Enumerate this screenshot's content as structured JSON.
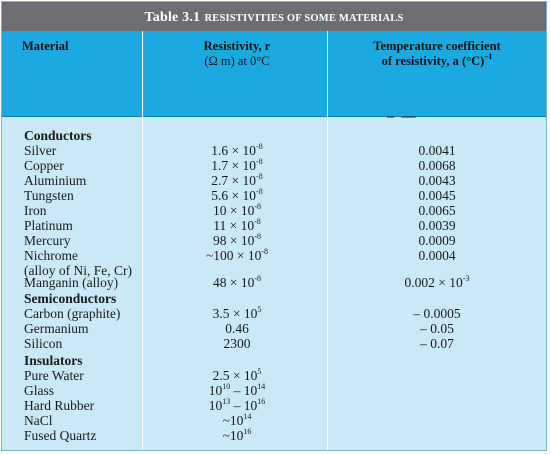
{
  "table_title": {
    "number": "Table 3.1",
    "rest": "Resistivities of some materials"
  },
  "headers": {
    "material": "Material",
    "resistivity_line1": "Resistivity, r",
    "resistivity_line2": "(Ω m) at 0°C",
    "coef_line1": "Temperature coefficient",
    "coef_line2": "of resistivity, a (°C)",
    "coef_unit_sup": "–1",
    "dash": "– —"
  },
  "categories": {
    "conductors": "Conductors",
    "semiconductors": "Semiconductors",
    "insulators": "Insulators"
  },
  "rows": [
    {
      "material": "Silver",
      "r_base": "1.6 × 10",
      "r_exp": "-8",
      "coef_base": "0.0041",
      "coef_exp": ""
    },
    {
      "material": "Copper",
      "r_base": "1.7 × 10",
      "r_exp": "-8",
      "coef_base": "0.0068",
      "coef_exp": ""
    },
    {
      "material": "Aluminium",
      "r_base": "2.7 × 10",
      "r_exp": "-8",
      "coef_base": "0.0043",
      "coef_exp": ""
    },
    {
      "material": "Tungsten",
      "r_base": "5.6 × 10",
      "r_exp": "-8",
      "coef_base": "0.0045",
      "coef_exp": ""
    },
    {
      "material": "Iron",
      "r_base": "10 × 10",
      "r_exp": "-8",
      "coef_base": "0.0065",
      "coef_exp": ""
    },
    {
      "material": "Platinum",
      "r_base": "11 × 10",
      "r_exp": "-8",
      "coef_base": "0.0039",
      "coef_exp": ""
    },
    {
      "material": "Mercury",
      "r_base": "98 × 10",
      "r_exp": "-8",
      "coef_base": "0.0009",
      "coef_exp": ""
    },
    {
      "material": "Nichrome",
      "r_base": "~100 × 10",
      "r_exp": "-8",
      "coef_base": "0.0004",
      "coef_exp": ""
    },
    {
      "material": "(alloy of Ni, Fe, Cr)",
      "r_base": "",
      "r_exp": "",
      "coef_base": "",
      "coef_exp": ""
    },
    {
      "material": "Manganin (alloy)",
      "r_base": "48 × 10",
      "r_exp": "-8",
      "coef_base": "0.002 × 10",
      "coef_exp": "-3"
    },
    {
      "material": "Carbon (graphite)",
      "r_base": "3.5 × 10",
      "r_exp": "5",
      "coef_base": "– 0.0005",
      "coef_exp": ""
    },
    {
      "material": "Germanium",
      "r_base": "0.46",
      "r_exp": "",
      "coef_base": "– 0.05",
      "coef_exp": ""
    },
    {
      "material": "Silicon",
      "r_base": "2300",
      "r_exp": "",
      "coef_base": "– 0.07",
      "coef_exp": ""
    },
    {
      "material": "Pure Water",
      "r_base": "2.5 × 10",
      "r_exp": "5",
      "coef_base": "",
      "coef_exp": ""
    },
    {
      "material": "Glass",
      "r_base": "10",
      "r_exp": "10",
      "r_base2": " – 10",
      "r_exp2": "14",
      "coef_base": "",
      "coef_exp": ""
    },
    {
      "material": "Hard Rubber",
      "r_base": "10",
      "r_exp": "13",
      "r_base2": " – 10",
      "r_exp2": "16",
      "coef_base": "",
      "coef_exp": ""
    },
    {
      "material": "NaCl",
      "r_base": "~10",
      "r_exp": "14",
      "coef_base": "",
      "coef_exp": ""
    },
    {
      "material": "Fused Quartz",
      "r_base": "~10",
      "r_exp": "16",
      "coef_base": "",
      "coef_exp": ""
    }
  ]
}
